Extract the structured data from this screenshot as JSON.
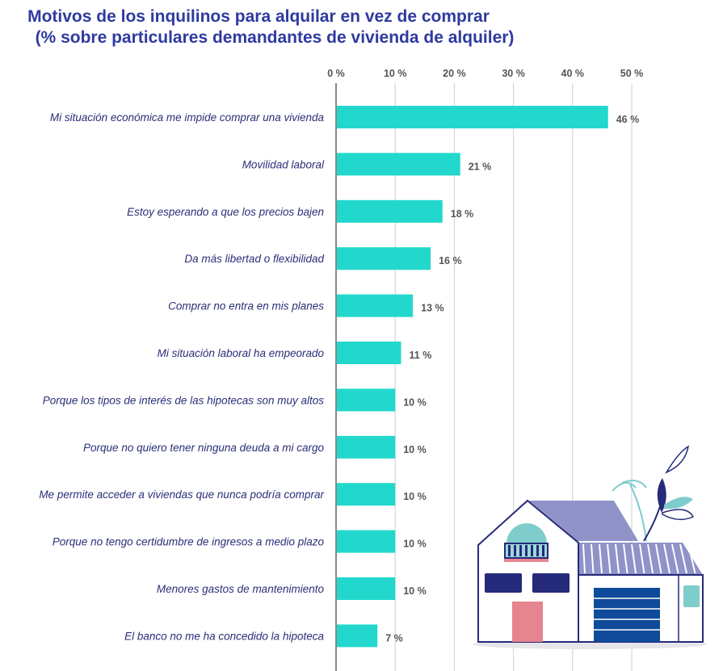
{
  "chart_data": {
    "type": "bar",
    "orientation": "horizontal",
    "title": "Motivos de los inquilinos para alquilar en vez de comprar",
    "subtitle": "(% sobre particulares demandantes de vivienda de alquiler)",
    "categories": [
      "Mi situación económica me impide comprar una vivienda",
      "Movilidad laboral",
      "Estoy esperando a que los precios bajen",
      "Da más libertad o flexibilidad",
      "Comprar no entra en mis planes",
      "Mi situación laboral ha empeorado",
      "Porque los tipos de interés de las hipotecas son muy altos",
      "Porque no quiero tener ninguna deuda a mi cargo",
      "Me permite acceder a viviendas que nunca podría comprar",
      "Porque no tengo certidumbre de ingresos a medio plazo",
      "Menores gastos de mantenimiento",
      "El banco no me ha concedido la hipoteca"
    ],
    "values": [
      46,
      21,
      18,
      16,
      13,
      11,
      10,
      10,
      10,
      10,
      10,
      7
    ],
    "value_labels": [
      "46 %",
      "21 %",
      "18 %",
      "16 %",
      "13 %",
      "11 %",
      "10 %",
      "10 %",
      "10 %",
      "10 %",
      "10 %",
      "7 %"
    ],
    "xlim": [
      0,
      50
    ],
    "xticks": [
      0,
      10,
      20,
      30,
      40,
      50
    ],
    "xtick_labels": [
      "0 %",
      "10 %",
      "20 %",
      "30 %",
      "40 %",
      "50 %"
    ],
    "xaxis_position": "top",
    "grid": true,
    "bar_color": "#22d8cc",
    "title_color": "#2e3a9f",
    "label_color": "#2b2f78"
  }
}
